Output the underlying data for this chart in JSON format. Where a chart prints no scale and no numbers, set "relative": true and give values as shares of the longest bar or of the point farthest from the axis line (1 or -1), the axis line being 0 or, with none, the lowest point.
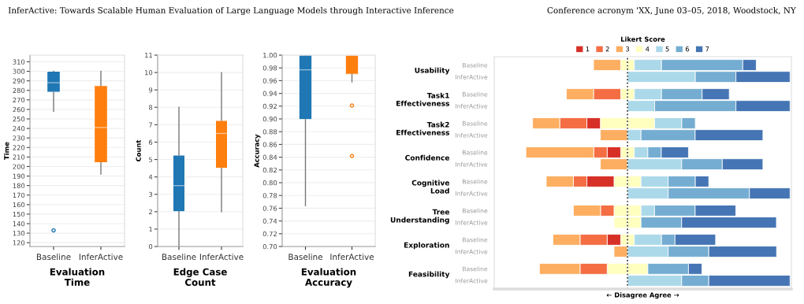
{
  "chart_data": [
    {
      "type": "other",
      "annotations": [
        "InferActive: Towards Scalable Human Evaluation of Large Language Models through Interactive Inference",
        "Conference acronym 'XX, June 03–05, 2018, Woodstock, NY"
      ]
    },
    {
      "type": "box",
      "categories": [
        "Baseline",
        "InferActive"
      ],
      "colors": [
        "#1f77b4",
        "#ff7f0e"
      ],
      "xlabel": "Evaluation\nTime",
      "ylabel": "Time",
      "grid": "y",
      "ylim": [
        116,
        317
      ],
      "yticks": [
        120,
        130,
        140,
        150,
        160,
        170,
        180,
        190,
        200,
        210,
        220,
        230,
        240,
        250,
        260,
        270,
        280,
        290,
        300,
        310
      ],
      "boxes": [
        {
          "low": 258,
          "q1": 278,
          "median": 288,
          "q3": 300,
          "high": 300,
          "outliers": [
            133
          ]
        },
        {
          "low": 192,
          "q1": 204,
          "median": 241,
          "q3": 285,
          "high": 300
        }
      ]
    },
    {
      "type": "box",
      "categories": [
        "Baseline",
        "InferActive"
      ],
      "colors": [
        "#1f77b4",
        "#ff7f0e"
      ],
      "xlabel": "Edge Case\nCount",
      "ylabel": "Count",
      "grid": "y",
      "ylim": [
        0,
        11
      ],
      "yticks": [
        0,
        1,
        2,
        3,
        4,
        5,
        6,
        7,
        8,
        9,
        10,
        11
      ],
      "boxes": [
        {
          "low": 0,
          "q1": 2,
          "median": 3.5,
          "q3": 5.25,
          "high": 8
        },
        {
          "low": 2,
          "q1": 4.5,
          "median": 6.5,
          "q3": 7.25,
          "high": 10
        }
      ]
    },
    {
      "type": "box",
      "categories": [
        "Baseline",
        "InferActive"
      ],
      "colors": [
        "#1f77b4",
        "#ff7f0e"
      ],
      "xlabel": "Evaluation\nAccuracy",
      "ylabel": "Accuracy",
      "grid": "y",
      "ylim": [
        0.7,
        1.0
      ],
      "yticks": [
        {
          "value": 0.7,
          "label": "0.70"
        },
        {
          "value": 0.72,
          "label": "0.72"
        },
        {
          "value": 0.74,
          "label": "0.74"
        },
        {
          "value": 0.76,
          "label": "0.76"
        },
        {
          "value": 0.78,
          "label": "0.78"
        },
        {
          "value": 0.8,
          "label": "0.80"
        },
        {
          "value": 0.82,
          "label": "0.82"
        },
        {
          "value": 0.84,
          "label": "0.84"
        },
        {
          "value": 0.86,
          "label": "0.86"
        },
        {
          "value": 0.88,
          "label": "0.88"
        },
        {
          "value": 0.9,
          "label": "0.90"
        },
        {
          "value": 0.92,
          "label": "0.92"
        },
        {
          "value": 0.94,
          "label": "0.94"
        },
        {
          "value": 0.96,
          "label": "0.96"
        },
        {
          "value": 0.98,
          "label": "0.98"
        },
        {
          "value": 1.0,
          "label": "1.00"
        }
      ],
      "boxes": [
        {
          "low": 0.764,
          "q1": 0.899,
          "median": 0.977,
          "q3": 1.0,
          "high": 1.0
        },
        {
          "low": 0.958,
          "q1": 0.97,
          "median": 1.0,
          "q3": 1.0,
          "high": 1.0,
          "outliers": [
            0.921,
            0.842
          ]
        }
      ]
    },
    {
      "type": "bar",
      "orientation": "horizontal",
      "relative": true,
      "legend": "top",
      "legend_title": "Likert Score",
      "xlabel": "← Disagree Agree →",
      "categories": [
        "Baseline",
        "InferActive",
        "Baseline",
        "InferActive",
        "Baseline",
        "InferActive",
        "Baseline",
        "InferActive",
        "Baseline",
        "InferActive",
        "Baseline",
        "InferActive",
        "Baseline",
        "InferActive",
        "Baseline",
        "InferActive"
      ],
      "annotations": [
        "Usability",
        "Task1\nEffectiveness",
        "Task2\nEffectiveness",
        "Confidence",
        "Cognitive\nLoad",
        "Tree\nUnderstanding",
        "Exploration",
        "Feasibility"
      ],
      "stacked": true,
      "ref_lines": [
        {
          "axis": "x",
          "value": 0,
          "color": "#333333",
          "line_style": "dotted"
        }
      ],
      "series": [
        {
          "color": "#ffffbf",
          "values": [
            -0.042,
            null,
            -0.042,
            null,
            -0.167,
            null,
            -0.042,
            null,
            -0.083,
            null,
            -0.083,
            -0.083,
            -0.042,
            null,
            -0.125,
            null
          ]
        },
        {
          "name": "1",
          "color": "#d73027",
          "values": [
            null,
            null,
            null,
            null,
            -0.083,
            null,
            -0.083,
            null,
            -0.167,
            null,
            null,
            null,
            -0.083,
            null,
            null,
            null
          ]
        },
        {
          "name": "2",
          "color": "#f46d43",
          "values": [
            null,
            null,
            -0.167,
            null,
            -0.167,
            null,
            -0.083,
            null,
            -0.083,
            null,
            -0.083,
            null,
            -0.167,
            null,
            -0.167,
            null
          ]
        },
        {
          "name": "3",
          "color": "#fdae61",
          "values": [
            -0.167,
            null,
            -0.167,
            null,
            -0.167,
            -0.167,
            -0.417,
            -0.167,
            -0.167,
            null,
            -0.167,
            null,
            -0.167,
            -0.083,
            -0.25,
            null
          ]
        },
        {
          "name": "4",
          "color": "#ffffbf",
          "values": [
            0.042,
            null,
            0.042,
            null,
            0.167,
            null,
            0.042,
            null,
            0.083,
            null,
            0.083,
            0.083,
            0.042,
            null,
            0.125,
            null
          ]
        },
        {
          "name": "5",
          "color": "#abd9e9",
          "values": [
            0.167,
            0.417,
            0.167,
            0.167,
            0.167,
            0.083,
            0.083,
            0.333,
            0.167,
            0.25,
            0.083,
            null,
            0.167,
            0.25,
            null,
            0.333
          ]
        },
        {
          "name": "6",
          "color": "#74add1",
          "values": [
            0.5,
            0.25,
            0.25,
            0.5,
            0.083,
            0.333,
            0.083,
            0.25,
            0.167,
            0.5,
            0.25,
            0.25,
            0.083,
            0.25,
            0.25,
            0.167
          ]
        },
        {
          "name": "7",
          "color": "#4575b4",
          "values": [
            0.083,
            0.333,
            0.167,
            0.333,
            null,
            0.417,
            0.167,
            0.25,
            0.083,
            0.25,
            0.25,
            0.583,
            0.25,
            0.417,
            0.083,
            0.5
          ]
        }
      ]
    }
  ]
}
